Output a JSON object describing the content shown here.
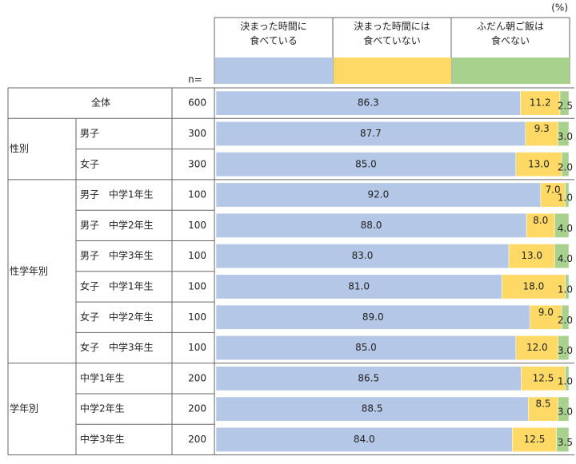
{
  "chart_data": {
    "type": "bar",
    "orientation": "horizontal",
    "stacked": true,
    "unit": "(%)",
    "n_label": "n=",
    "xlim": [
      0,
      100
    ],
    "groups": [
      null,
      "性別",
      "性別",
      "性学年別",
      "性学年別",
      "性学年別",
      "性学年別",
      "性学年別",
      "性学年別",
      "学年別",
      "学年別",
      "学年別"
    ],
    "categories": [
      "全体",
      "男子",
      "女子",
      "男子　中学1年生",
      "男子　中学2年生",
      "男子　中学3年生",
      "女子　中学1年生",
      "女子　中学2年生",
      "女子　中学3年生",
      "中学1年生",
      "中学2年生",
      "中学3年生"
    ],
    "n": [
      600,
      300,
      300,
      100,
      100,
      100,
      100,
      100,
      100,
      200,
      200,
      200
    ],
    "series": [
      {
        "name": "決まった時間に\n食べている",
        "color": "#b4c7e7",
        "values": [
          86.3,
          87.7,
          85,
          92,
          88,
          83,
          81,
          89,
          85,
          86.5,
          88.5,
          84
        ],
        "value_labels": [
          "86.3",
          "87.7",
          "85.0",
          "92.0",
          "88.0",
          "83.0",
          "81.0",
          "89.0",
          "85.0",
          "86.5",
          "88.5",
          "84.0"
        ]
      },
      {
        "name": "決まった時間には\n食べていない",
        "color": "#ffd966",
        "values": [
          11.2,
          9.3,
          13,
          7,
          8,
          13,
          18,
          9,
          12,
          12.5,
          8.5,
          12.5
        ],
        "value_labels": [
          "11.2",
          "9.3",
          "13.0",
          "7.0",
          "8.0",
          "13.0",
          "18.0",
          "9.0",
          "12.0",
          "12.5",
          "8.5",
          "12.5"
        ]
      },
      {
        "name": "ふだん朝ご飯は\n食べない",
        "color": "#a9d18e",
        "values": [
          2.5,
          3,
          2,
          1,
          4,
          4,
          1,
          2,
          3,
          1,
          3,
          3.5
        ],
        "value_labels": [
          "2.5",
          "3.0",
          "2.0",
          "1.0",
          "4.0",
          "4.0",
          "1.0",
          "2.0",
          "3.0",
          "1.0",
          "3.0",
          "3.5"
        ]
      }
    ]
  }
}
